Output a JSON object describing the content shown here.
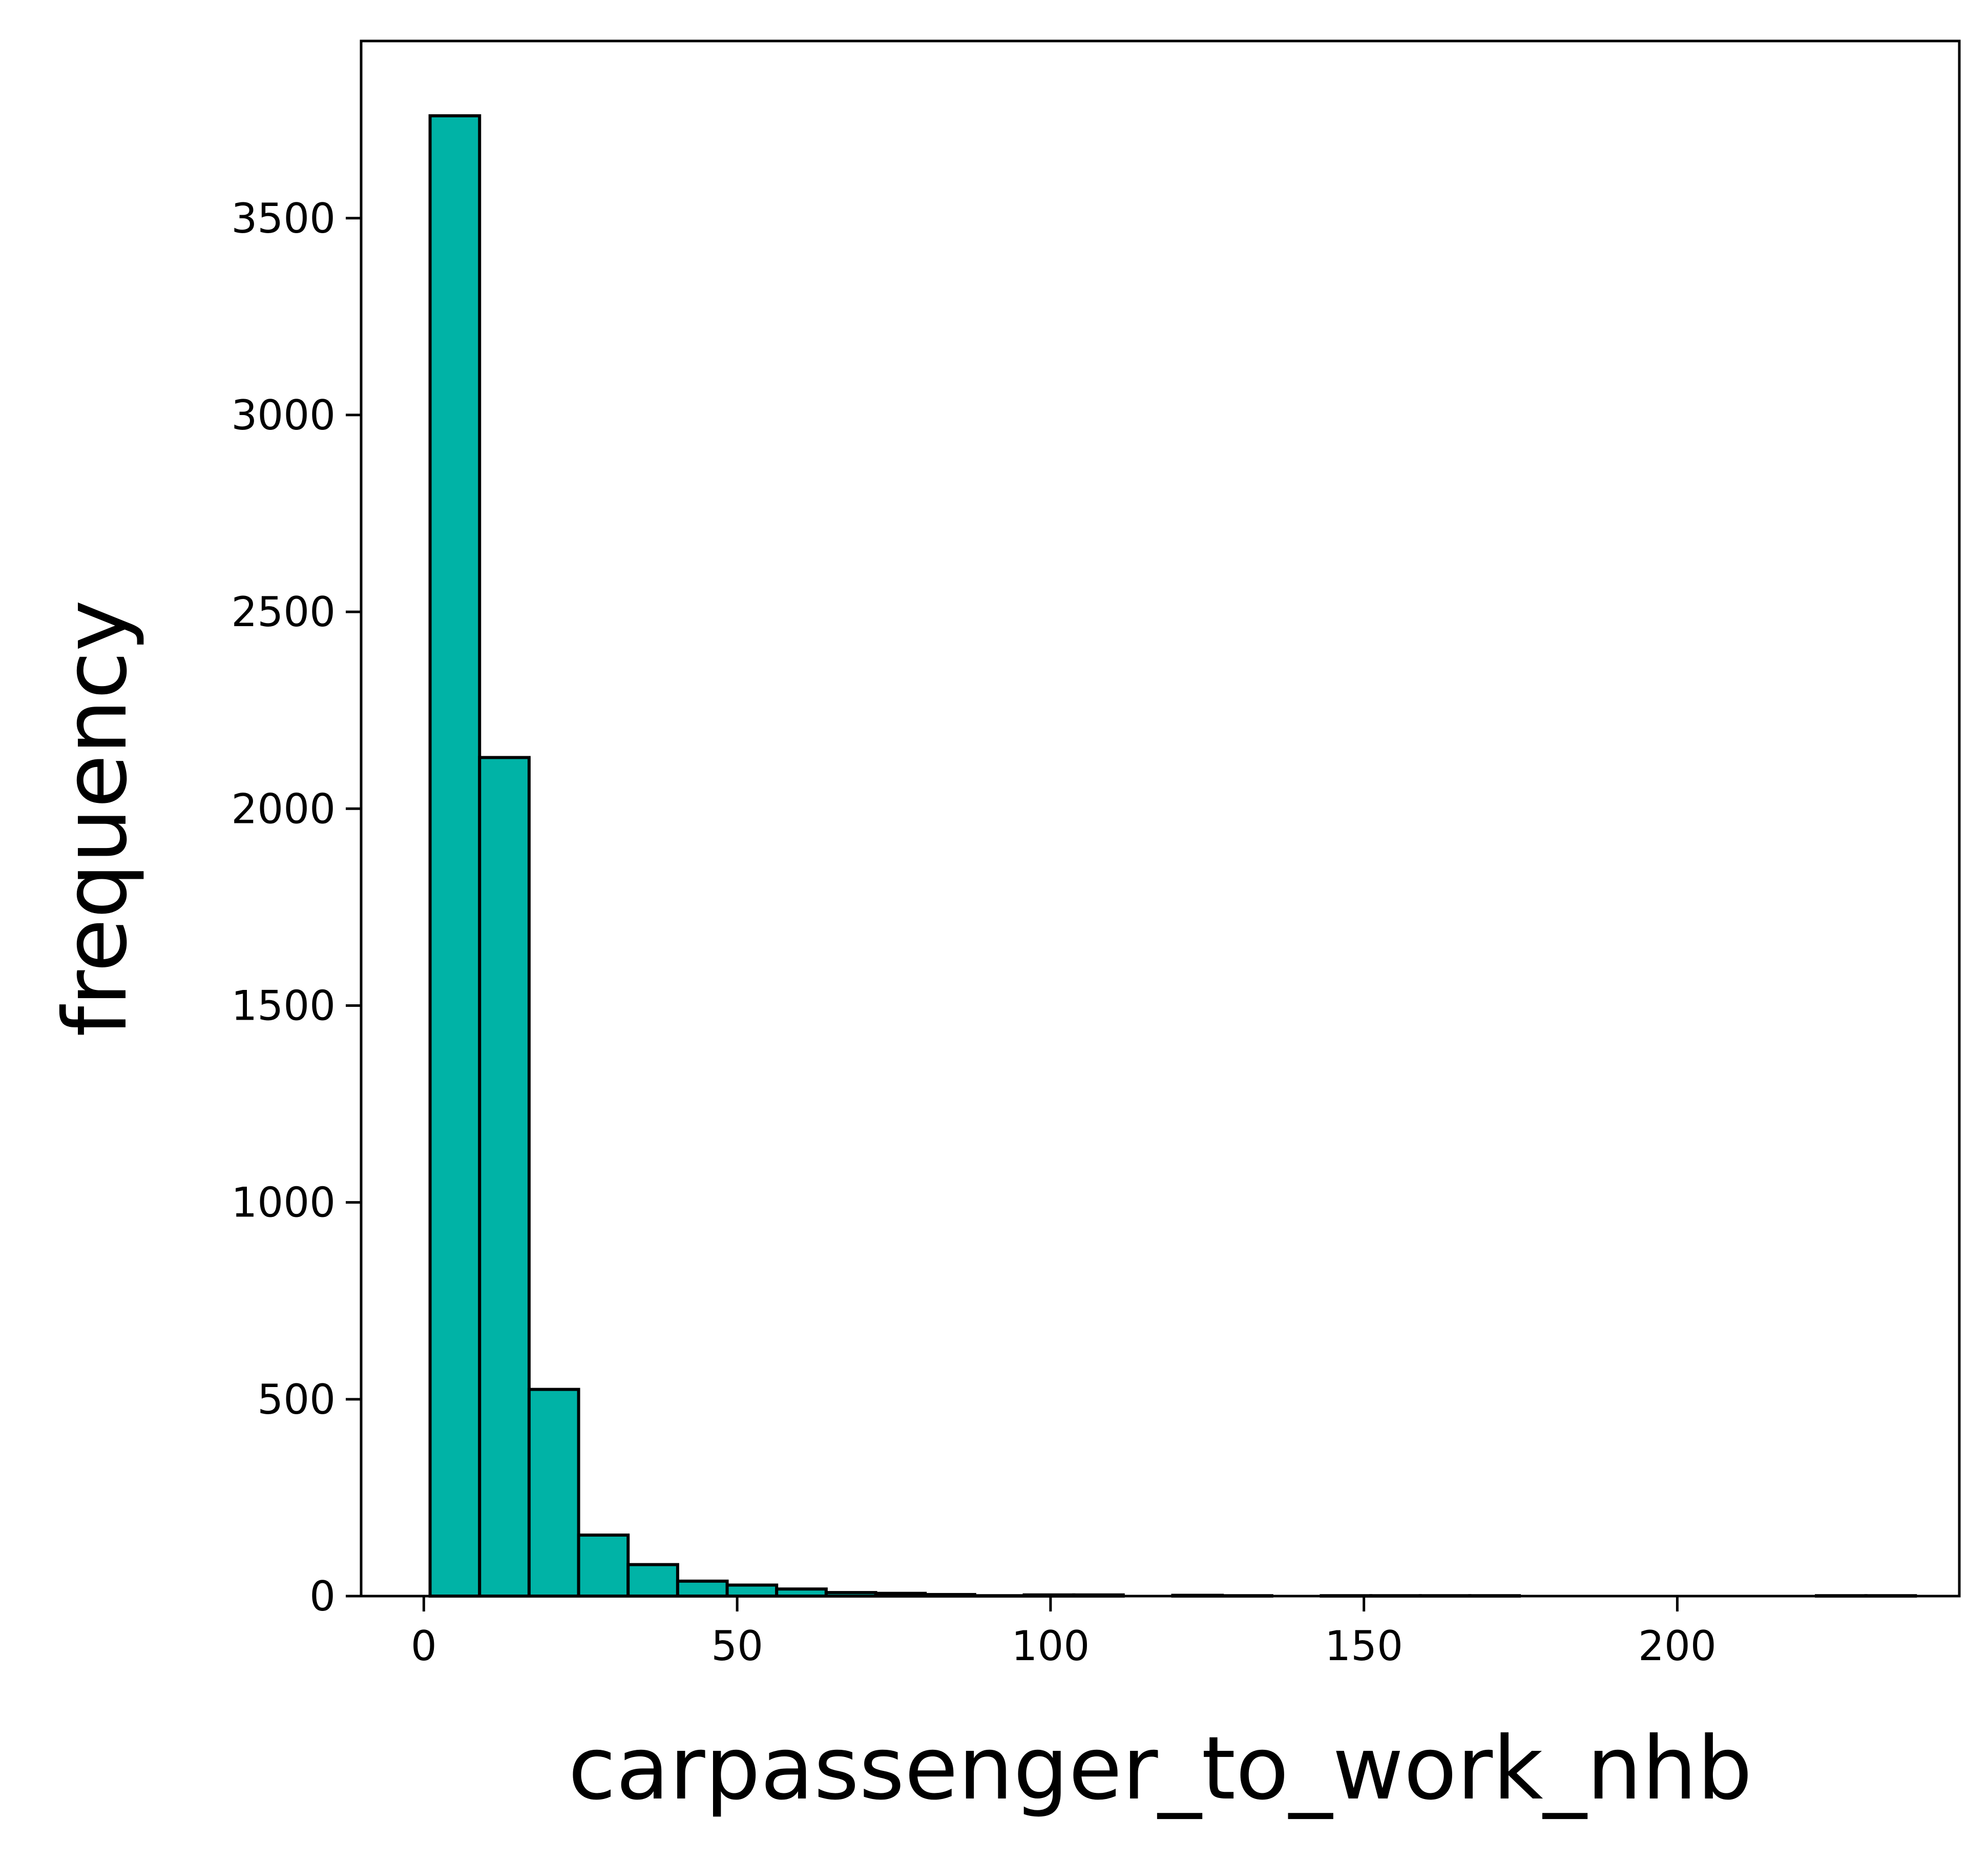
{
  "chart_data": {
    "type": "bar",
    "subtype": "histogram",
    "title": "",
    "xlabel": "carpassenger_to_work_nhb",
    "ylabel": "frequency",
    "bar_color": "#00b3a6",
    "edge_color": "#000000",
    "grid": false,
    "legend": "none",
    "xlim": [
      -10,
      245
    ],
    "ylim": [
      0,
      3950
    ],
    "xticks": [
      0,
      50,
      100,
      150,
      200
    ],
    "xtick_labels": [
      "0",
      "50",
      "100",
      "150",
      "200"
    ],
    "yticks": [
      0,
      500,
      1000,
      1500,
      2000,
      2500,
      3000,
      3500
    ],
    "ytick_labels": [
      "0",
      "500",
      "1000",
      "1500",
      "2000",
      "2500",
      "3000",
      "3500"
    ],
    "bins": [
      {
        "x0": 1.0,
        "x1": 8.9,
        "count": 3760
      },
      {
        "x0": 8.9,
        "x1": 16.8,
        "count": 2130
      },
      {
        "x0": 16.8,
        "x1": 24.7,
        "count": 525
      },
      {
        "x0": 24.7,
        "x1": 32.6,
        "count": 155
      },
      {
        "x0": 32.6,
        "x1": 40.5,
        "count": 80
      },
      {
        "x0": 40.5,
        "x1": 48.4,
        "count": 38
      },
      {
        "x0": 48.4,
        "x1": 56.3,
        "count": 28
      },
      {
        "x0": 56.3,
        "x1": 64.2,
        "count": 18
      },
      {
        "x0": 64.2,
        "x1": 72.1,
        "count": 9
      },
      {
        "x0": 72.1,
        "x1": 80.0,
        "count": 7
      },
      {
        "x0": 80.0,
        "x1": 87.9,
        "count": 4
      },
      {
        "x0": 87.9,
        "x1": 95.8,
        "count": 1
      },
      {
        "x0": 95.8,
        "x1": 103.7,
        "count": 3
      },
      {
        "x0": 103.7,
        "x1": 111.6,
        "count": 3
      },
      {
        "x0": 111.6,
        "x1": 119.5,
        "count": 0
      },
      {
        "x0": 119.5,
        "x1": 127.4,
        "count": 2
      },
      {
        "x0": 127.4,
        "x1": 135.3,
        "count": 1
      },
      {
        "x0": 135.3,
        "x1": 143.2,
        "count": 0
      },
      {
        "x0": 143.2,
        "x1": 151.1,
        "count": 1
      },
      {
        "x0": 151.1,
        "x1": 159.0,
        "count": 1
      },
      {
        "x0": 159.0,
        "x1": 166.9,
        "count": 1
      },
      {
        "x0": 166.9,
        "x1": 174.8,
        "count": 1
      },
      {
        "x0": 174.8,
        "x1": 182.7,
        "count": 0
      },
      {
        "x0": 182.7,
        "x1": 190.6,
        "count": 0
      },
      {
        "x0": 190.6,
        "x1": 198.5,
        "count": 0
      },
      {
        "x0": 198.5,
        "x1": 206.4,
        "count": 0
      },
      {
        "x0": 206.4,
        "x1": 214.3,
        "count": 0
      },
      {
        "x0": 214.3,
        "x1": 222.2,
        "count": 0
      },
      {
        "x0": 222.2,
        "x1": 230.1,
        "count": 1
      },
      {
        "x0": 230.1,
        "x1": 238.0,
        "count": 1
      }
    ]
  }
}
